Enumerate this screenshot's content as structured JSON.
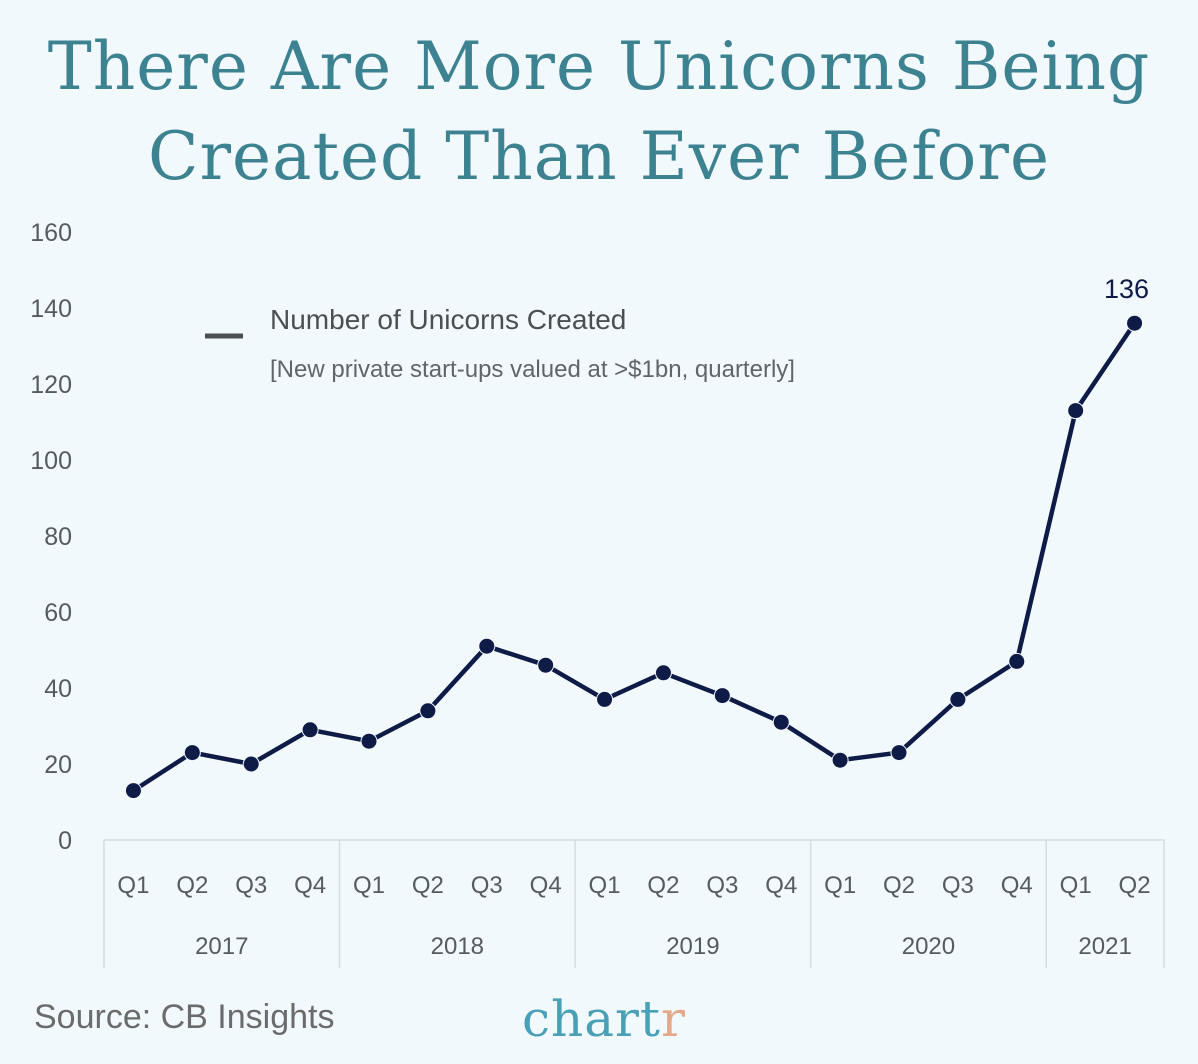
{
  "title_line1": "There Are More Unicorns Being",
  "title_line2": "Created Than Ever Before",
  "source": "Source: CB Insights",
  "brand": {
    "main": "chart",
    "accent": "r"
  },
  "colors": {
    "line": "#0f1b47",
    "title": "#3d8291",
    "brand_main": "#4aa0b7",
    "brand_accent": "#e3a98a",
    "background": "#f1f9fd"
  },
  "chart_data": {
    "type": "line",
    "legend": {
      "title": "Number of Unicorns Created",
      "subtitle": "[New private start-ups valued at >$1bn, quarterly]"
    },
    "y_ticks": [
      0,
      20,
      40,
      60,
      80,
      100,
      120,
      140,
      160
    ],
    "ylim": [
      0,
      160
    ],
    "categories": [
      "Q1",
      "Q2",
      "Q3",
      "Q4",
      "Q1",
      "Q2",
      "Q3",
      "Q4",
      "Q1",
      "Q2",
      "Q3",
      "Q4",
      "Q1",
      "Q2",
      "Q3",
      "Q4",
      "Q1",
      "Q2"
    ],
    "groups": [
      {
        "label": "2017",
        "count": 4
      },
      {
        "label": "2018",
        "count": 4
      },
      {
        "label": "2019",
        "count": 4
      },
      {
        "label": "2020",
        "count": 4
      },
      {
        "label": "2021",
        "count": 2
      }
    ],
    "series": [
      {
        "name": "Number of Unicorns Created",
        "values": [
          13,
          23,
          20,
          29,
          26,
          34,
          51,
          46,
          37,
          44,
          38,
          31,
          21,
          23,
          37,
          47,
          113,
          136
        ]
      }
    ],
    "annotations": [
      {
        "index": 17,
        "text": "136"
      }
    ],
    "grid": false
  }
}
